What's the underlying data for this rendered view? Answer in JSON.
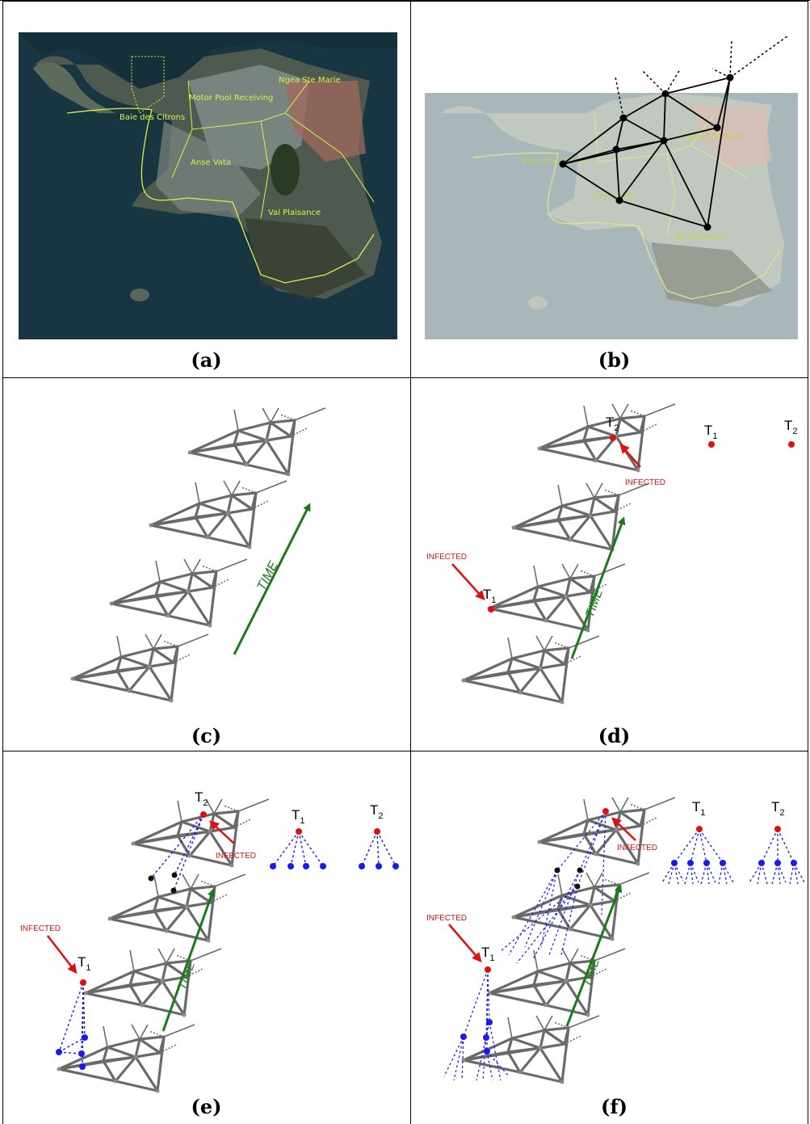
{
  "captions": {
    "a": "(a)",
    "b": "(b)",
    "c": "(c)",
    "d": "(d)",
    "e": "(e)",
    "f": "(f)"
  },
  "map_labels": {
    "motor_pool": "Motor Pool Receiving",
    "ngea": "Ngea Ste Marie",
    "baie": "Baie des Citrons",
    "anse_vata": "Anse Vata",
    "val_plaisance": "Val Plaisance"
  },
  "labels": {
    "time": "TIME",
    "infected": "INFECTED",
    "t1": "T",
    "t1_sub": "1",
    "t2": "T",
    "t2_sub": "2"
  },
  "colors": {
    "time_arrow": "#1a7a1a",
    "infected": "#e01010",
    "tree": "#1a1aee",
    "network": "#555555",
    "map_border": "#d8f04a"
  }
}
